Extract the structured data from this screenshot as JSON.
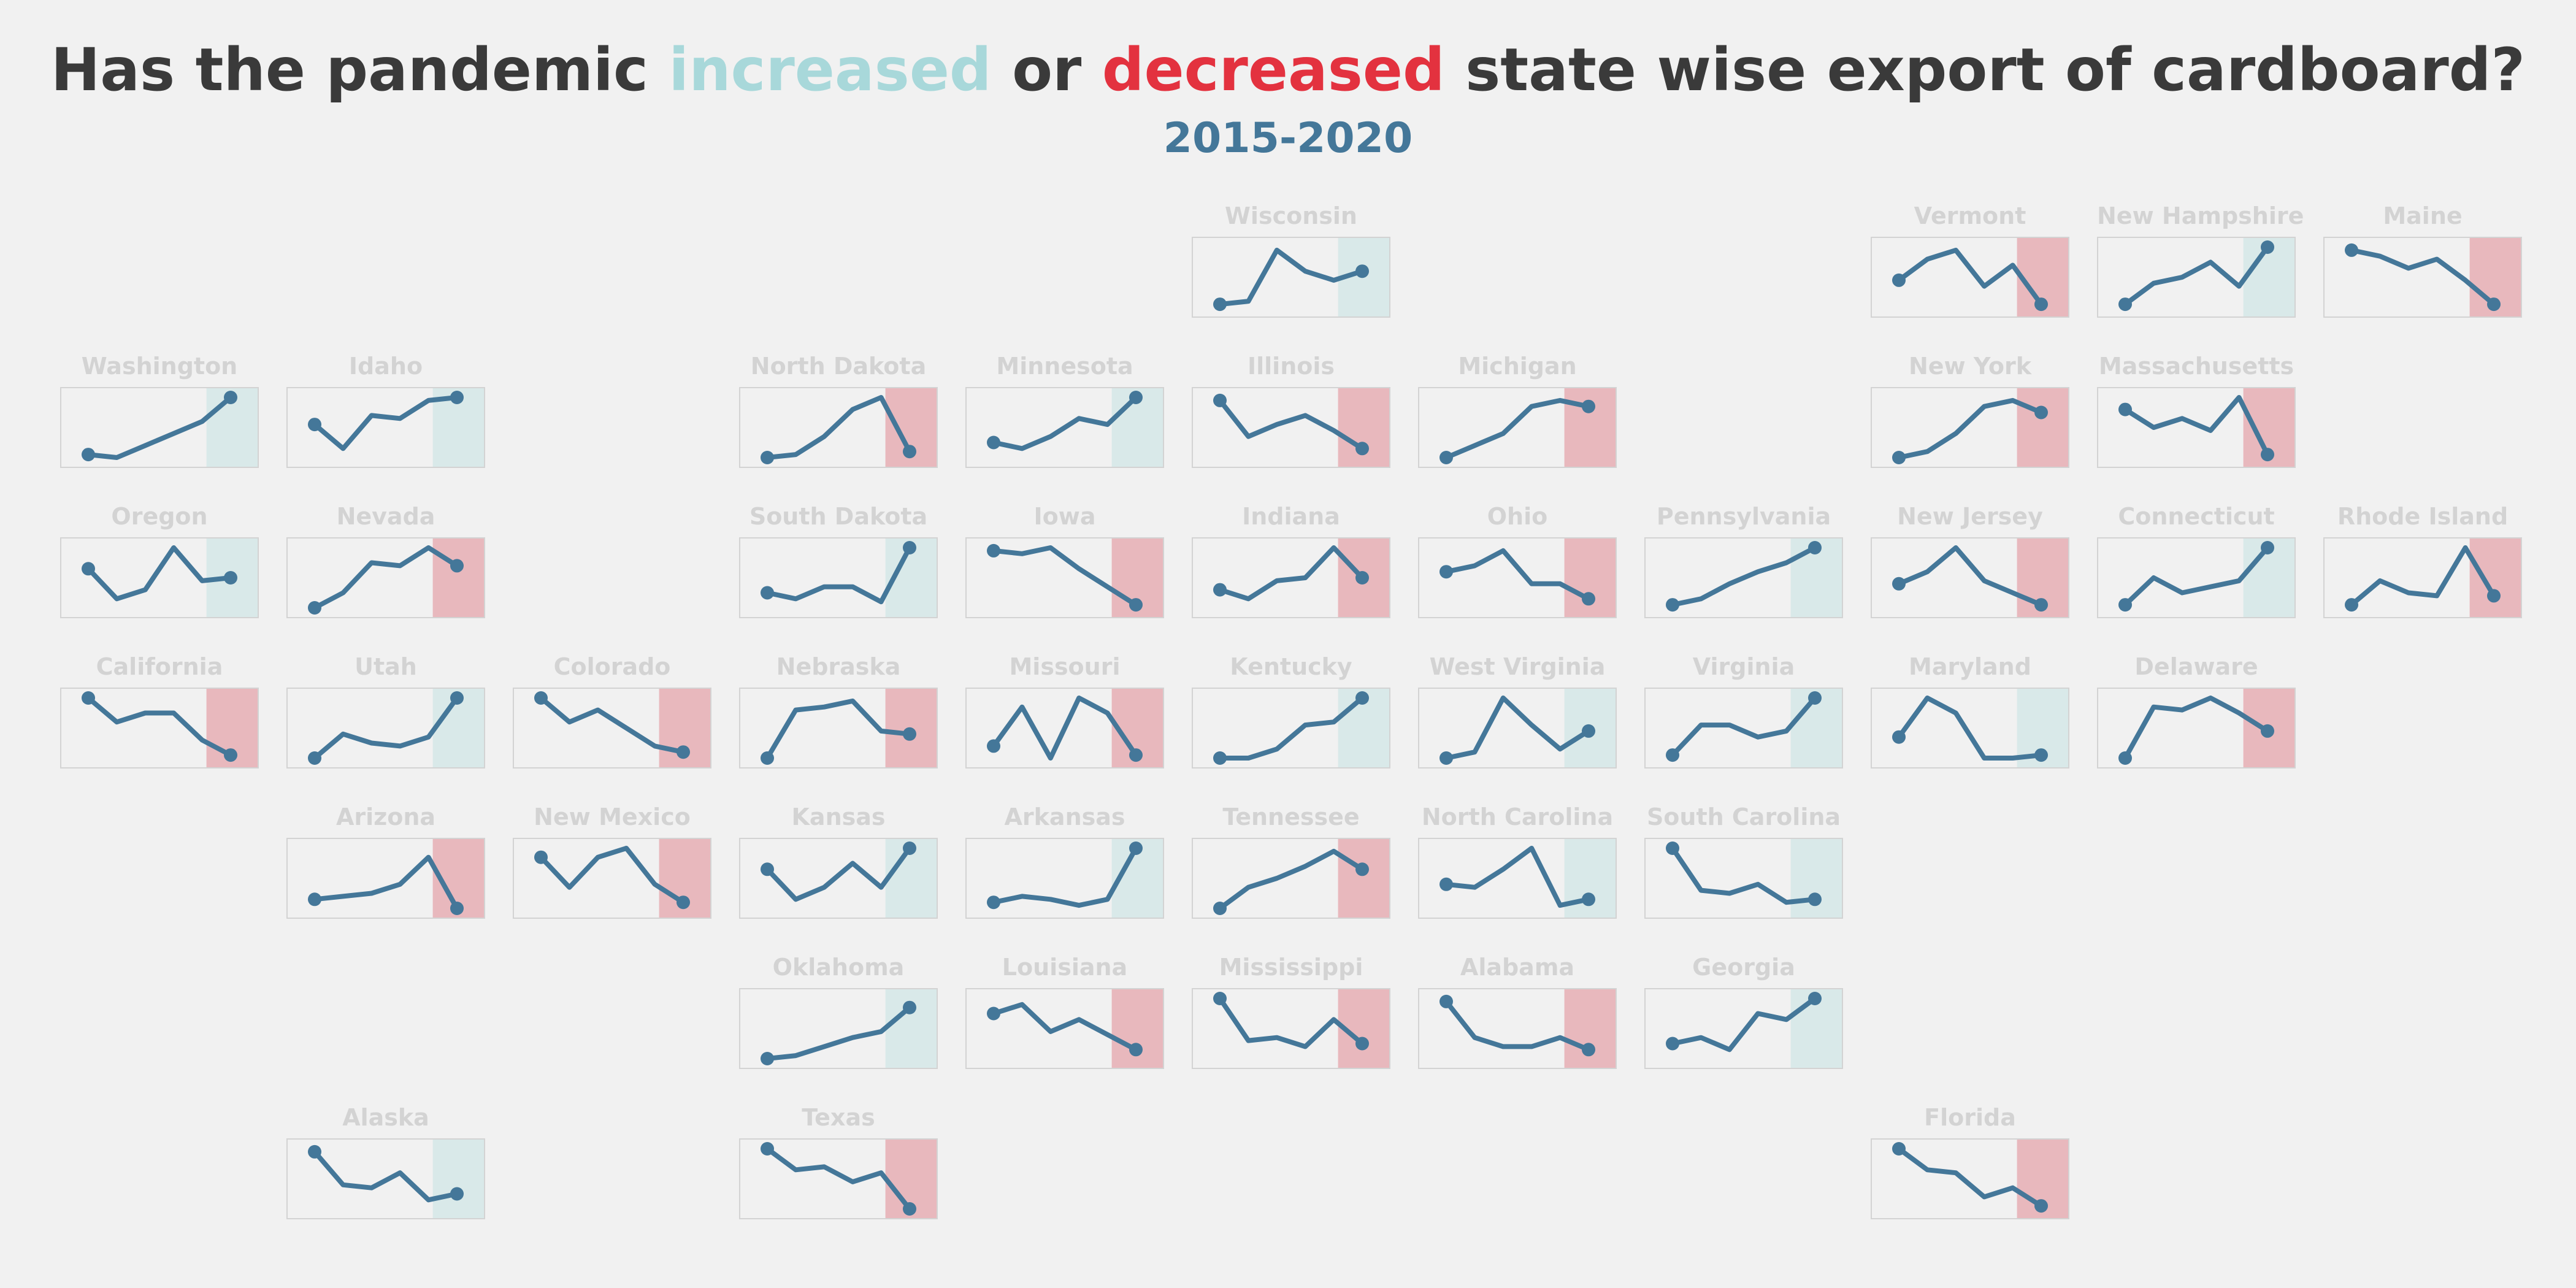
{
  "title": {
    "prefix": "Has the pandemic ",
    "word_increase": "increased",
    "middle": " or ",
    "word_decrease": "decreased",
    "suffix": " state wise export of cardboard?"
  },
  "subtitle": "2015-2020",
  "colors": {
    "title_text": "#3a3a3a",
    "subtitle": "#447799",
    "increase": "#a8d8da",
    "decrease": "#e3323f",
    "increase_fill": "#d9e9e9",
    "decrease_fill": "#e8b8bd",
    "line": "#447799",
    "panel_border": "#d3d3d3",
    "label": "#d3d3d3",
    "background": "#f1f1f1"
  },
  "chart_data": {
    "type": "line",
    "layout": "tile-grid small multiples (US states)",
    "x": [
      2015,
      2016,
      2017,
      2018,
      2019,
      2020
    ],
    "highlight_period": [
      2019,
      2020
    ],
    "states": [
      {
        "name": "Wisconsin",
        "row": 0,
        "col": 5,
        "change": "increase",
        "values": [
          0.05,
          0.1,
          0.95,
          0.6,
          0.45,
          0.6
        ]
      },
      {
        "name": "Vermont",
        "row": 0,
        "col": 8,
        "change": "decrease",
        "values": [
          0.45,
          0.8,
          0.95,
          0.35,
          0.7,
          0.05
        ]
      },
      {
        "name": "New Hampshire",
        "row": 0,
        "col": 9,
        "change": "increase",
        "values": [
          0.05,
          0.4,
          0.5,
          0.75,
          0.35,
          1.0
        ]
      },
      {
        "name": "Maine",
        "row": 0,
        "col": 10,
        "change": "decrease",
        "values": [
          0.95,
          0.85,
          0.65,
          0.8,
          0.45,
          0.05
        ]
      },
      {
        "name": "Washington",
        "row": 1,
        "col": 0,
        "change": "increase",
        "values": [
          0.05,
          0.0,
          0.2,
          0.4,
          0.6,
          1.0
        ]
      },
      {
        "name": "Idaho",
        "row": 1,
        "col": 1,
        "change": "increase",
        "values": [
          0.55,
          0.15,
          0.7,
          0.65,
          0.95,
          1.0
        ]
      },
      {
        "name": "North Dakota",
        "row": 1,
        "col": 3,
        "change": "decrease",
        "values": [
          0.0,
          0.05,
          0.35,
          0.8,
          1.0,
          0.1
        ]
      },
      {
        "name": "Minnesota",
        "row": 1,
        "col": 4,
        "change": "increase",
        "values": [
          0.25,
          0.15,
          0.35,
          0.65,
          0.55,
          1.0
        ]
      },
      {
        "name": "Illinois",
        "row": 1,
        "col": 5,
        "change": "decrease",
        "values": [
          0.95,
          0.35,
          0.55,
          0.7,
          0.45,
          0.15
        ]
      },
      {
        "name": "Michigan",
        "row": 1,
        "col": 6,
        "change": "decrease",
        "values": [
          0.0,
          0.2,
          0.4,
          0.85,
          0.95,
          0.85
        ]
      },
      {
        "name": "New York",
        "row": 1,
        "col": 8,
        "change": "decrease",
        "values": [
          0.0,
          0.1,
          0.4,
          0.85,
          0.95,
          0.75
        ]
      },
      {
        "name": "Massachusetts",
        "row": 1,
        "col": 9,
        "change": "decrease",
        "values": [
          0.8,
          0.5,
          0.65,
          0.45,
          1.0,
          0.05
        ]
      },
      {
        "name": "Oregon",
        "row": 2,
        "col": 0,
        "change": "increase",
        "values": [
          0.65,
          0.15,
          0.3,
          1.0,
          0.45,
          0.5
        ]
      },
      {
        "name": "Nevada",
        "row": 2,
        "col": 1,
        "change": "decrease",
        "values": [
          0.0,
          0.25,
          0.75,
          0.7,
          1.0,
          0.7
        ]
      },
      {
        "name": "South Dakota",
        "row": 2,
        "col": 3,
        "change": "increase",
        "values": [
          0.25,
          0.15,
          0.35,
          0.35,
          0.1,
          1.0
        ]
      },
      {
        "name": "Iowa",
        "row": 2,
        "col": 4,
        "change": "decrease",
        "values": [
          0.95,
          0.9,
          1.0,
          0.65,
          0.35,
          0.05
        ]
      },
      {
        "name": "Indiana",
        "row": 2,
        "col": 5,
        "change": "decrease",
        "values": [
          0.3,
          0.15,
          0.45,
          0.5,
          1.0,
          0.5
        ]
      },
      {
        "name": "Ohio",
        "row": 2,
        "col": 6,
        "change": "decrease",
        "values": [
          0.6,
          0.7,
          0.95,
          0.4,
          0.4,
          0.15
        ]
      },
      {
        "name": "Pennsylvania",
        "row": 2,
        "col": 7,
        "change": "increase",
        "values": [
          0.05,
          0.15,
          0.4,
          0.6,
          0.75,
          1.0
        ]
      },
      {
        "name": "New Jersey",
        "row": 2,
        "col": 8,
        "change": "decrease",
        "values": [
          0.4,
          0.6,
          1.0,
          0.45,
          0.25,
          0.05
        ]
      },
      {
        "name": "Connecticut",
        "row": 2,
        "col": 9,
        "change": "increase",
        "values": [
          0.05,
          0.5,
          0.25,
          0.35,
          0.45,
          1.0
        ]
      },
      {
        "name": "Rhode Island",
        "row": 2,
        "col": 10,
        "change": "decrease",
        "values": [
          0.05,
          0.45,
          0.25,
          0.2,
          1.0,
          0.2
        ]
      },
      {
        "name": "California",
        "row": 3,
        "col": 0,
        "change": "decrease",
        "values": [
          1.0,
          0.6,
          0.75,
          0.75,
          0.3,
          0.05
        ]
      },
      {
        "name": "Utah",
        "row": 3,
        "col": 1,
        "change": "increase",
        "values": [
          0.0,
          0.4,
          0.25,
          0.2,
          0.35,
          1.0
        ]
      },
      {
        "name": "Colorado",
        "row": 3,
        "col": 2,
        "change": "decrease",
        "values": [
          1.0,
          0.6,
          0.8,
          0.5,
          0.2,
          0.1
        ]
      },
      {
        "name": "Nebraska",
        "row": 3,
        "col": 3,
        "change": "decrease",
        "values": [
          0.0,
          0.8,
          0.85,
          0.95,
          0.45,
          0.4
        ]
      },
      {
        "name": "Missouri",
        "row": 3,
        "col": 4,
        "change": "decrease",
        "values": [
          0.2,
          0.85,
          0.0,
          1.0,
          0.75,
          0.05
        ]
      },
      {
        "name": "Kentucky",
        "row": 3,
        "col": 5,
        "change": "increase",
        "values": [
          0.0,
          0.0,
          0.15,
          0.55,
          0.6,
          1.0
        ]
      },
      {
        "name": "West Virginia",
        "row": 3,
        "col": 6,
        "change": "increase",
        "values": [
          0.0,
          0.1,
          1.0,
          0.55,
          0.15,
          0.45
        ]
      },
      {
        "name": "Virginia",
        "row": 3,
        "col": 7,
        "change": "increase",
        "values": [
          0.05,
          0.55,
          0.55,
          0.35,
          0.45,
          1.0
        ]
      },
      {
        "name": "Maryland",
        "row": 3,
        "col": 8,
        "change": "increase",
        "values": [
          0.35,
          1.0,
          0.75,
          0.0,
          0.0,
          0.05
        ]
      },
      {
        "name": "Delaware",
        "row": 3,
        "col": 9,
        "change": "decrease",
        "values": [
          0.0,
          0.85,
          0.8,
          1.0,
          0.75,
          0.45
        ]
      },
      {
        "name": "Arizona",
        "row": 4,
        "col": 1,
        "change": "decrease",
        "values": [
          0.15,
          0.2,
          0.25,
          0.4,
          0.85,
          0.0
        ]
      },
      {
        "name": "New Mexico",
        "row": 4,
        "col": 2,
        "change": "decrease",
        "values": [
          0.85,
          0.35,
          0.85,
          1.0,
          0.4,
          0.1
        ]
      },
      {
        "name": "Kansas",
        "row": 4,
        "col": 3,
        "change": "increase",
        "values": [
          0.65,
          0.15,
          0.35,
          0.75,
          0.35,
          1.0
        ]
      },
      {
        "name": "Arkansas",
        "row": 4,
        "col": 4,
        "change": "increase",
        "values": [
          0.1,
          0.2,
          0.15,
          0.05,
          0.15,
          1.0
        ]
      },
      {
        "name": "Tennessee",
        "row": 4,
        "col": 5,
        "change": "decrease",
        "values": [
          0.0,
          0.35,
          0.5,
          0.7,
          0.95,
          0.65
        ]
      },
      {
        "name": "North Carolina",
        "row": 4,
        "col": 6,
        "change": "increase",
        "values": [
          0.4,
          0.35,
          0.65,
          1.0,
          0.05,
          0.15
        ]
      },
      {
        "name": "South Carolina",
        "row": 4,
        "col": 7,
        "change": "increase",
        "values": [
          1.0,
          0.3,
          0.25,
          0.4,
          0.1,
          0.15
        ]
      },
      {
        "name": "Oklahoma",
        "row": 5,
        "col": 3,
        "change": "increase",
        "values": [
          0.0,
          0.05,
          0.2,
          0.35,
          0.45,
          0.85
        ]
      },
      {
        "name": "Louisiana",
        "row": 5,
        "col": 4,
        "change": "decrease",
        "values": [
          0.75,
          0.9,
          0.45,
          0.65,
          0.4,
          0.15
        ]
      },
      {
        "name": "Mississippi",
        "row": 5,
        "col": 5,
        "change": "decrease",
        "values": [
          1.0,
          0.3,
          0.35,
          0.2,
          0.65,
          0.25
        ]
      },
      {
        "name": "Alabama",
        "row": 5,
        "col": 6,
        "change": "decrease",
        "values": [
          0.95,
          0.35,
          0.2,
          0.2,
          0.35,
          0.15
        ]
      },
      {
        "name": "Georgia",
        "row": 5,
        "col": 7,
        "change": "increase",
        "values": [
          0.25,
          0.35,
          0.15,
          0.75,
          0.65,
          1.0
        ]
      },
      {
        "name": "Alaska",
        "row": 6,
        "col": 1,
        "change": "increase",
        "values": [
          0.95,
          0.4,
          0.35,
          0.6,
          0.15,
          0.25
        ]
      },
      {
        "name": "Texas",
        "row": 6,
        "col": 3,
        "change": "decrease",
        "values": [
          1.0,
          0.65,
          0.7,
          0.45,
          0.6,
          0.0
        ]
      },
      {
        "name": "Florida",
        "row": 6,
        "col": 8,
        "change": "decrease",
        "values": [
          1.0,
          0.65,
          0.6,
          0.2,
          0.35,
          0.05
        ]
      }
    ]
  }
}
